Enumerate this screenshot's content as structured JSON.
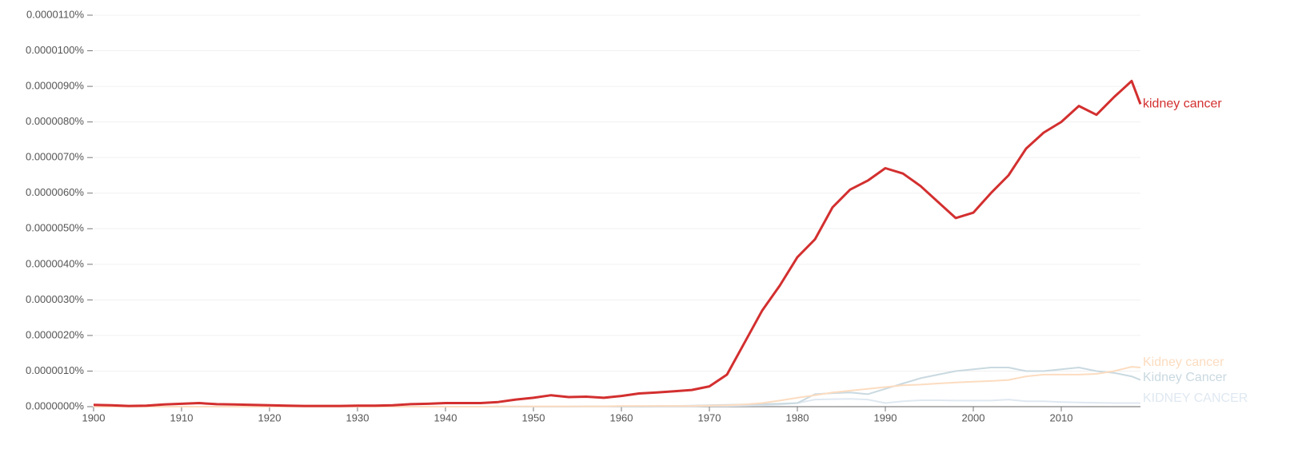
{
  "chart_data": {
    "type": "line",
    "x": [
      1900,
      1902,
      1904,
      1906,
      1908,
      1910,
      1912,
      1914,
      1916,
      1918,
      1920,
      1922,
      1924,
      1926,
      1928,
      1930,
      1932,
      1934,
      1936,
      1938,
      1940,
      1942,
      1944,
      1946,
      1948,
      1950,
      1952,
      1954,
      1956,
      1958,
      1960,
      1962,
      1964,
      1966,
      1968,
      1970,
      1972,
      1974,
      1976,
      1978,
      1980,
      1982,
      1984,
      1986,
      1988,
      1990,
      1992,
      1994,
      1996,
      1998,
      2000,
      2002,
      2004,
      2006,
      2008,
      2010,
      2012,
      2014,
      2016,
      2018,
      2019
    ],
    "xlim": [
      1900,
      2019
    ],
    "xticks": [
      1900,
      1910,
      1920,
      1930,
      1940,
      1950,
      1960,
      1970,
      1980,
      1990,
      2000,
      2010
    ],
    "ylim": [
      0,
      1.1e-05
    ],
    "yticks": [
      {
        "value": 0,
        "label": "0.0000000%"
      },
      {
        "value": 1e-06,
        "label": "0.0000010%"
      },
      {
        "value": 2e-06,
        "label": "0.0000020%"
      },
      {
        "value": 3e-06,
        "label": "0.0000030%"
      },
      {
        "value": 4e-06,
        "label": "0.0000040%"
      },
      {
        "value": 5e-06,
        "label": "0.0000050%"
      },
      {
        "value": 6e-06,
        "label": "0.0000060%"
      },
      {
        "value": 7e-06,
        "label": "0.0000070%"
      },
      {
        "value": 8e-06,
        "label": "0.0000080%"
      },
      {
        "value": 9e-06,
        "label": "0.0000090%"
      },
      {
        "value": 1e-05,
        "label": "0.0000100%"
      },
      {
        "value": 1.1e-05,
        "label": "0.0000110%"
      }
    ],
    "grid": true,
    "series": [
      {
        "name": "kidney cancer",
        "color": "#d32f2f",
        "values": [
          5e-08,
          4e-08,
          2e-08,
          3e-08,
          6e-08,
          8e-08,
          1e-07,
          7e-08,
          6e-08,
          5e-08,
          4e-08,
          3e-08,
          2e-08,
          2e-08,
          2e-08,
          3e-08,
          3e-08,
          4e-08,
          7e-08,
          8e-08,
          1e-07,
          1e-07,
          1e-07,
          1.3e-07,
          2e-07,
          2.5e-07,
          3.2e-07,
          2.7e-07,
          2.8e-07,
          2.5e-07,
          3e-07,
          3.7e-07,
          4e-07,
          4.3e-07,
          4.7e-07,
          5.7e-07,
          9e-07,
          1.8e-06,
          2.7e-06,
          3.4e-06,
          4.2e-06,
          4.7e-06,
          5.6e-06,
          6.1e-06,
          6.35e-06,
          6.7e-06,
          6.55e-06,
          6.2e-06,
          5.75e-06,
          5.3e-06,
          5.45e-06,
          6e-06,
          6.5e-06,
          7.25e-06,
          7.7e-06,
          8e-06,
          8.45e-06,
          8.2e-06,
          8.7e-06,
          9.15e-06,
          8.5e-06
        ]
      },
      {
        "name": "Kidney cancer",
        "color": "#fcdcc0",
        "values": [
          0,
          0,
          0,
          0,
          0,
          0,
          0,
          0,
          0,
          0,
          0,
          0,
          0,
          0,
          0,
          0,
          0,
          0,
          0,
          0,
          0,
          0,
          0,
          1e-08,
          1e-08,
          1e-08,
          1e-08,
          1e-08,
          1e-08,
          1e-08,
          2e-08,
          2e-08,
          2e-08,
          2e-08,
          2e-08,
          3e-08,
          4e-08,
          6e-08,
          1e-07,
          1.7e-07,
          2.5e-07,
          3.2e-07,
          4e-07,
          4.5e-07,
          5e-07,
          5.5e-07,
          6e-07,
          6.2e-07,
          6.5e-07,
          6.8e-07,
          7e-07,
          7.2e-07,
          7.5e-07,
          8.5e-07,
          9e-07,
          9e-07,
          9e-07,
          9.2e-07,
          1e-06,
          1.12e-06,
          1.1e-06
        ]
      },
      {
        "name": "Kidney Cancer",
        "color": "#c9d9e0",
        "values": [
          0,
          0,
          0,
          0,
          0,
          0,
          0,
          0,
          0,
          0,
          0,
          0,
          0,
          0,
          0,
          0,
          0,
          0,
          0,
          0,
          0,
          0,
          0,
          0,
          0,
          0,
          0,
          0,
          1e-08,
          1e-08,
          1e-08,
          1e-08,
          2e-08,
          2e-08,
          3e-08,
          4e-08,
          5e-08,
          6e-08,
          7e-08,
          8e-08,
          1e-07,
          3.5e-07,
          3.8e-07,
          4e-07,
          3.5e-07,
          5e-07,
          6.5e-07,
          8e-07,
          9e-07,
          1e-06,
          1.05e-06,
          1.1e-06,
          1.1e-06,
          1e-06,
          1e-06,
          1.05e-06,
          1.1e-06,
          1e-06,
          9.5e-07,
          8.5e-07,
          7.5e-07
        ]
      },
      {
        "name": "KIDNEY CANCER",
        "color": "#dfe8f1",
        "values": [
          0,
          0,
          0,
          0,
          0,
          0,
          0,
          0,
          0,
          0,
          0,
          0,
          0,
          0,
          0,
          0,
          0,
          0,
          0,
          0,
          0,
          0,
          0,
          0,
          0,
          0,
          0,
          0,
          0,
          0,
          1e-08,
          1e-08,
          1e-08,
          1e-08,
          1e-08,
          2e-08,
          2e-08,
          3e-08,
          4e-08,
          6e-08,
          1e-07,
          2e-07,
          2.1e-07,
          2.2e-07,
          2e-07,
          1e-07,
          1.5e-07,
          1.8e-07,
          1.8e-07,
          1.7e-07,
          1.7e-07,
          1.7e-07,
          2e-07,
          1.5e-07,
          1.5e-07,
          1.3e-07,
          1.2e-07,
          1.1e-07,
          1e-07,
          1e-07,
          1e-07
        ]
      }
    ]
  }
}
